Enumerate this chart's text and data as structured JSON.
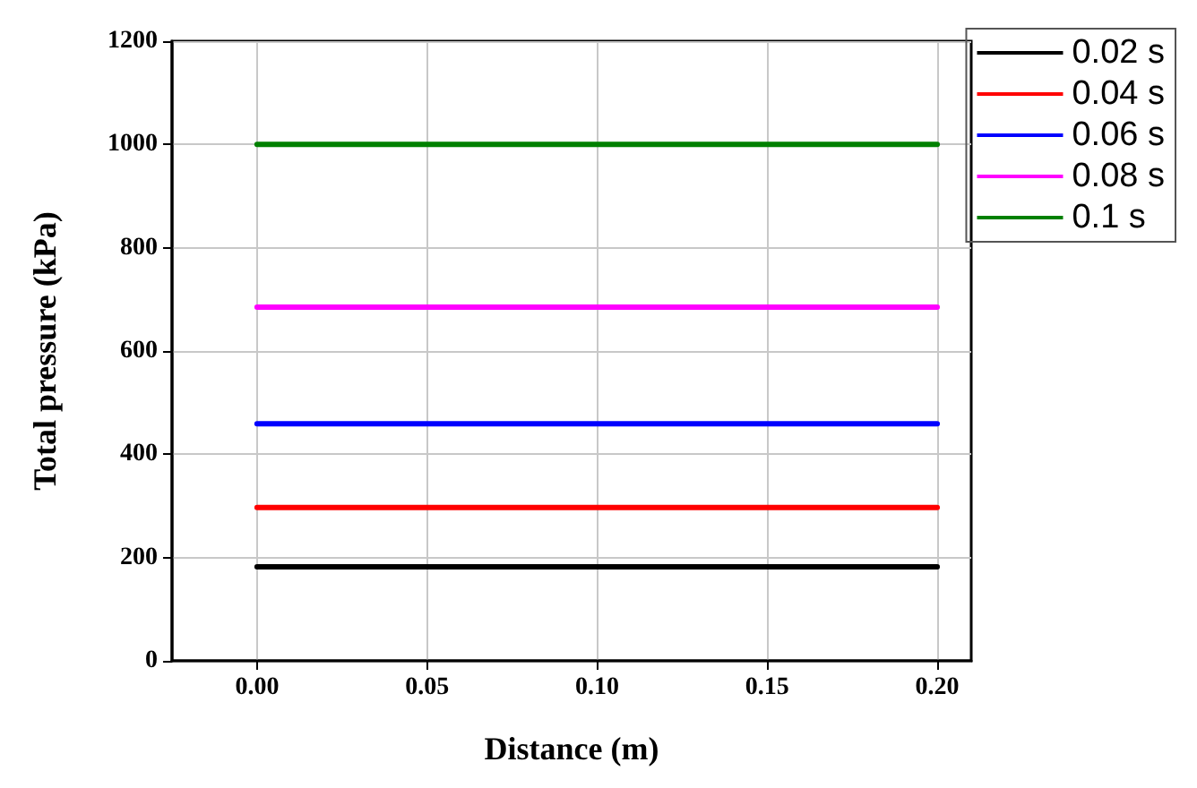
{
  "chart_data": {
    "type": "line",
    "xlabel": "Distance (m)",
    "ylabel": "Total pressure (kPa)",
    "xlim": [
      -0.025,
      0.21
    ],
    "xticks": [
      {
        "value": 0,
        "label": "0.00"
      },
      {
        "value": 0.05,
        "label": "0.05"
      },
      {
        "value": 0.1,
        "label": "0.10"
      },
      {
        "value": 0.15,
        "label": "0.15"
      },
      {
        "value": 0.2,
        "label": "0.20"
      }
    ],
    "ylim": [
      0,
      1200
    ],
    "yticks": [
      0,
      200,
      400,
      600,
      800,
      1000,
      1200
    ],
    "x": [
      0,
      0.2
    ],
    "series": [
      {
        "name": "0.02 s",
        "color": "#000000",
        "values": [
          182,
          182
        ]
      },
      {
        "name": "0.04 s",
        "color": "#ff0000",
        "values": [
          297,
          297
        ]
      },
      {
        "name": "0.06 s",
        "color": "#0000ff",
        "values": [
          459,
          459
        ]
      },
      {
        "name": "0.08 s",
        "color": "#ff00ff",
        "values": [
          685,
          685
        ]
      },
      {
        "name": "0.1 s",
        "color": "#008000",
        "values": [
          1000,
          1000
        ]
      }
    ],
    "grid": true,
    "legend": "top right",
    "marker": "none",
    "line_style": "solid"
  }
}
